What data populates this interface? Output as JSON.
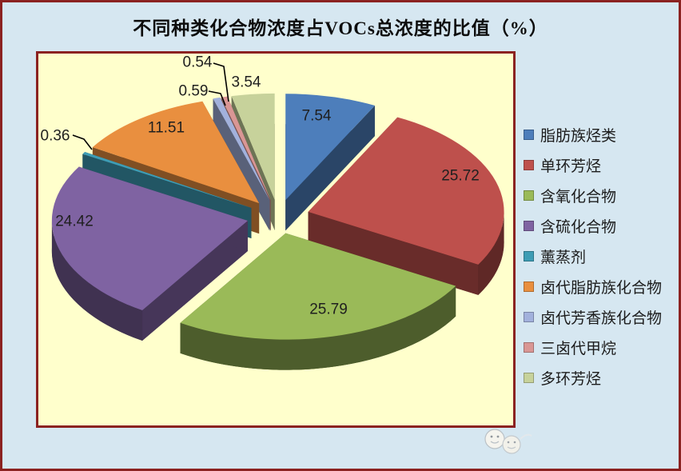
{
  "title": "不同种类化合物浓度占VOCs总浓度的比值（%）",
  "chart_data": {
    "type": "pie",
    "style": "3d-exploded",
    "title": "不同种类化合物浓度占VOCs总浓度的比值（%）",
    "unit": "%",
    "categories": [
      "脂肪族烃类",
      "单环芳烃",
      "含氧化合物",
      "含硫化合物",
      "薰蒸剂",
      "卤代脂肪族化合物",
      "卤代芳香族化合物",
      "三卤代甲烷",
      "多环芳烃"
    ],
    "values": [
      7.54,
      25.72,
      25.79,
      24.42,
      0.36,
      11.51,
      0.59,
      0.54,
      3.54
    ],
    "colors": [
      "#4d7ebb",
      "#be504c",
      "#9aba58",
      "#7f63a2",
      "#3e9db5",
      "#e98f3f",
      "#a2b1dc",
      "#d99694",
      "#c7d29b"
    ],
    "data_labels": [
      "7.54",
      "25.72",
      "25.79",
      "24.42",
      "0.36",
      "11.51",
      "0.59",
      "0.54",
      "3.54"
    ],
    "legend_position": "right",
    "start_angle_deg": -90,
    "direction": "clockwise",
    "plot_area_color": "#ffffcc",
    "frame_color": "#8b2221",
    "background_color": "#d6e7f1"
  }
}
